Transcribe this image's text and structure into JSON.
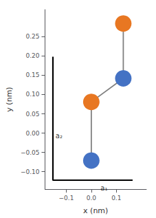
{
  "chart_data": {
    "type": "scatter",
    "xlabel": "x (nm)",
    "ylabel": "y (nm)",
    "xlim": [
      -0.185,
      0.22
    ],
    "ylim": [
      -0.145,
      0.32
    ],
    "xticks": [
      {
        "value": -0.1,
        "label": "−0.1"
      },
      {
        "value": 0.0,
        "label": "0.0"
      },
      0.1
    ],
    "yticks": [
      {
        "value": -0.1,
        "label": "−0.10"
      },
      {
        "value": -0.05,
        "label": "−0.05"
      },
      {
        "value": 0.0,
        "label": "0.00"
      },
      {
        "value": 0.05,
        "label": "0.05"
      },
      {
        "value": 0.1,
        "label": "0.10"
      },
      {
        "value": 0.15,
        "label": "0.15"
      },
      {
        "value": 0.2,
        "label": "0.20"
      },
      {
        "value": 0.25,
        "label": "0.25"
      }
    ],
    "grid": false,
    "series": [
      {
        "type": "line",
        "marker": "circle",
        "color": "#808080",
        "colors": [
          "#4472C4",
          "#E87722",
          "#4472C4",
          "#E87722"
        ],
        "x": [
          0.0,
          0.0,
          0.1278,
          0.1278
        ],
        "values": [
          -0.071,
          0.081,
          0.142,
          0.284
        ]
      }
    ],
    "annotations": [
      {
        "text": "a₁",
        "x": -0.155,
        "y": -0.122,
        "dx": 0.32,
        "dy": 0.0,
        "color": "black"
      },
      {
        "text": "a₂",
        "x": -0.155,
        "y": -0.122,
        "dx": 0.0,
        "dy": 0.32,
        "color": "black"
      }
    ]
  }
}
